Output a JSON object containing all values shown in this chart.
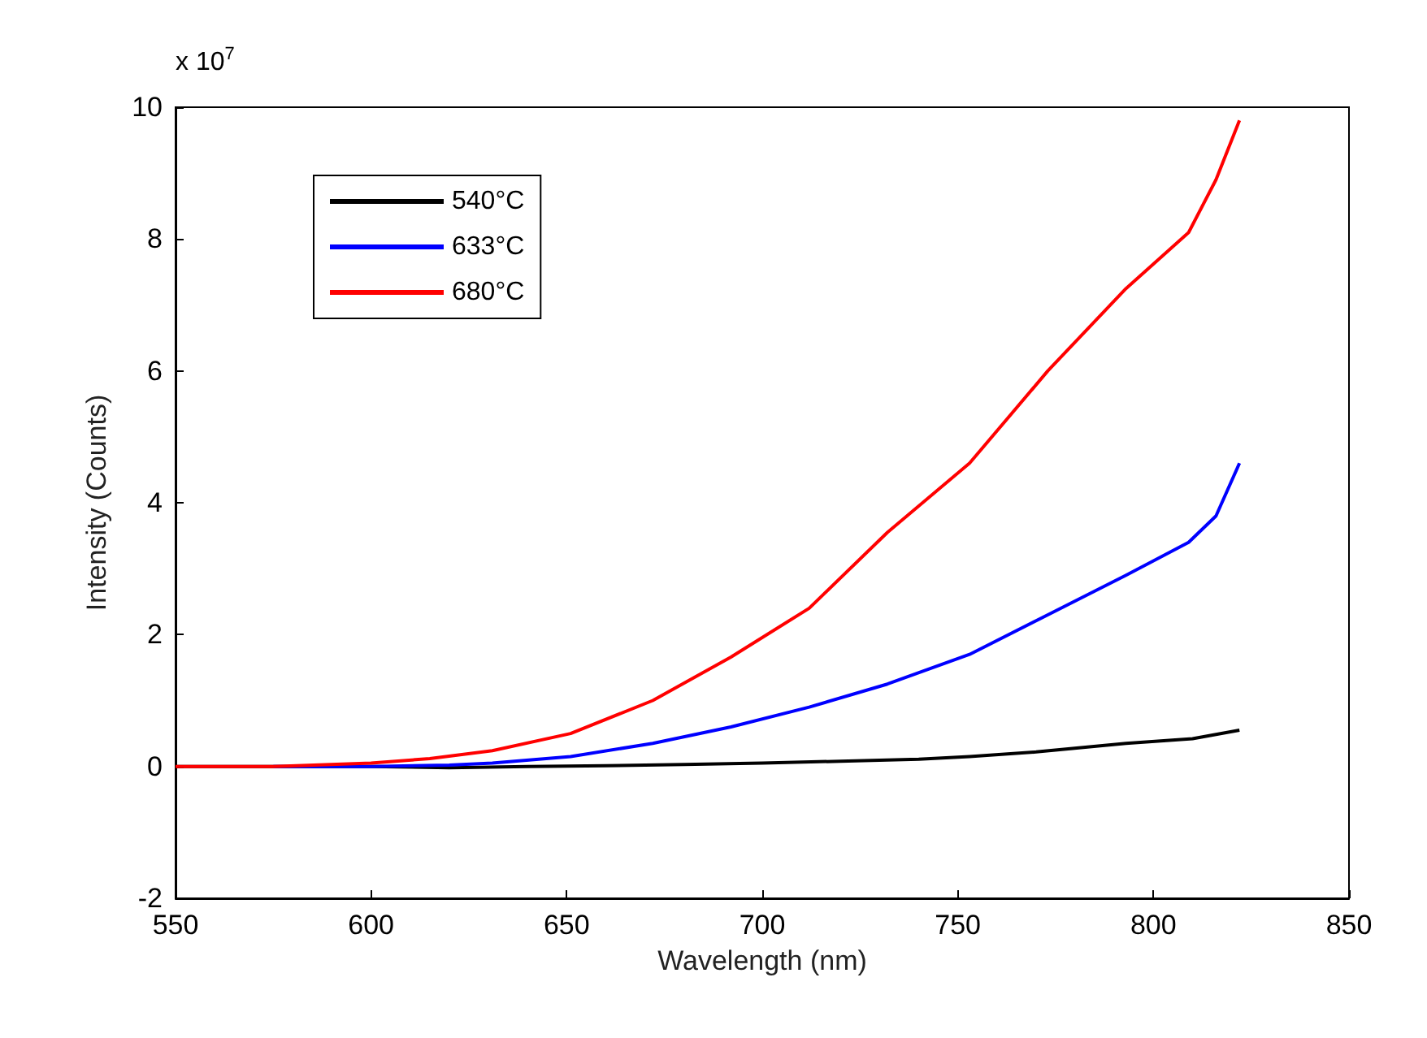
{
  "chart_data": {
    "type": "line",
    "xlabel": "Wavelength (nm)",
    "ylabel": "Intensity (Counts)",
    "annotations": [
      "x 10$^{7}$"
    ],
    "xlim": [
      550,
      850
    ],
    "xticks": [
      550,
      600,
      650,
      700,
      750,
      800,
      850
    ],
    "ylim": [
      -2,
      10
    ],
    "yticks": [
      -2,
      0,
      2,
      4,
      6,
      8,
      10
    ],
    "grid": false,
    "legend": "top left",
    "marker": "none",
    "line_style": "solid",
    "series": [
      {
        "name": "540°C",
        "color": "#000000",
        "x": [
          550,
          575,
          600,
          620,
          640,
          660,
          680,
          700,
          720,
          740,
          753,
          770,
          793,
          810,
          822
        ],
        "values": [
          0,
          0,
          0,
          -0.02,
          0,
          0.01,
          0.03,
          0.05,
          0.08,
          0.11,
          0.15,
          0.22,
          0.35,
          0.42,
          0.55
        ]
      },
      {
        "name": "633°C",
        "color": "#0000ff",
        "x": [
          575,
          600,
          620,
          631,
          651,
          672,
          692,
          712,
          732,
          753,
          773,
          793,
          809,
          816,
          822
        ],
        "values": [
          0,
          0,
          0.02,
          0.05,
          0.15,
          0.35,
          0.6,
          0.9,
          1.25,
          1.7,
          2.3,
          2.9,
          3.4,
          3.8,
          4.6
        ]
      },
      {
        "name": "680°C",
        "color": "#ff0000",
        "x": [
          550,
          575,
          600,
          615,
          631,
          651,
          672,
          692,
          712,
          732,
          753,
          773,
          793,
          809,
          816,
          822
        ],
        "values": [
          0,
          0,
          0.05,
          0.12,
          0.24,
          0.5,
          1.0,
          1.66,
          2.4,
          3.55,
          4.6,
          6.0,
          7.25,
          8.1,
          8.9,
          9.8
        ]
      }
    ]
  }
}
